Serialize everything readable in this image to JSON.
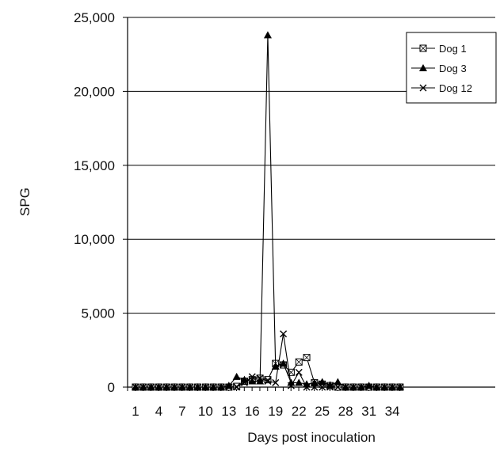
{
  "chart_data": {
    "type": "line",
    "title": "",
    "xlabel": "Days post inoculation",
    "ylabel": "SPG",
    "ylim": [
      0,
      25000
    ],
    "y_ticks": [
      0,
      5000,
      10000,
      15000,
      20000,
      25000
    ],
    "y_tick_labels": [
      "0",
      "5,000",
      "10,000",
      "15,000",
      "20,000",
      "25,000"
    ],
    "x_ticks": [
      1,
      4,
      7,
      10,
      13,
      16,
      19,
      22,
      25,
      28,
      31,
      34
    ],
    "x_tick_labels": [
      "1",
      "4",
      "7",
      "10",
      "13",
      "16",
      "19",
      "22",
      "25",
      "28",
      "31",
      "34"
    ],
    "x_range": [
      1,
      35
    ],
    "grid": "horizontal",
    "legend_position": "top-right",
    "x": [
      1,
      2,
      3,
      4,
      5,
      6,
      7,
      8,
      9,
      10,
      11,
      12,
      13,
      14,
      15,
      16,
      17,
      18,
      19,
      20,
      21,
      22,
      23,
      24,
      25,
      26,
      27,
      28,
      29,
      30,
      31,
      32,
      33,
      34,
      35
    ],
    "series": [
      {
        "name": "Dog 1",
        "marker": "square-x",
        "values": [
          0,
          0,
          0,
          0,
          0,
          0,
          0,
          0,
          0,
          0,
          0,
          0,
          0,
          50,
          400,
          500,
          600,
          500,
          1600,
          1500,
          1000,
          1700,
          2000,
          300,
          200,
          100,
          0,
          0,
          0,
          0,
          0,
          0,
          0,
          0,
          0
        ]
      },
      {
        "name": "Dog 3",
        "marker": "triangle",
        "values": [
          0,
          0,
          0,
          0,
          0,
          0,
          0,
          0,
          0,
          0,
          0,
          0,
          100,
          700,
          500,
          400,
          400,
          23800,
          1400,
          1600,
          300,
          300,
          200,
          300,
          350,
          150,
          350,
          0,
          0,
          0,
          100,
          0,
          0,
          0,
          0
        ]
      },
      {
        "name": "Dog 12",
        "marker": "x",
        "values": [
          0,
          0,
          0,
          0,
          0,
          0,
          0,
          0,
          0,
          0,
          0,
          0,
          0,
          0,
          300,
          700,
          600,
          400,
          300,
          3600,
          100,
          1000,
          0,
          0,
          0,
          0,
          0,
          0,
          0,
          0,
          0,
          0,
          0,
          0,
          0
        ]
      }
    ]
  }
}
